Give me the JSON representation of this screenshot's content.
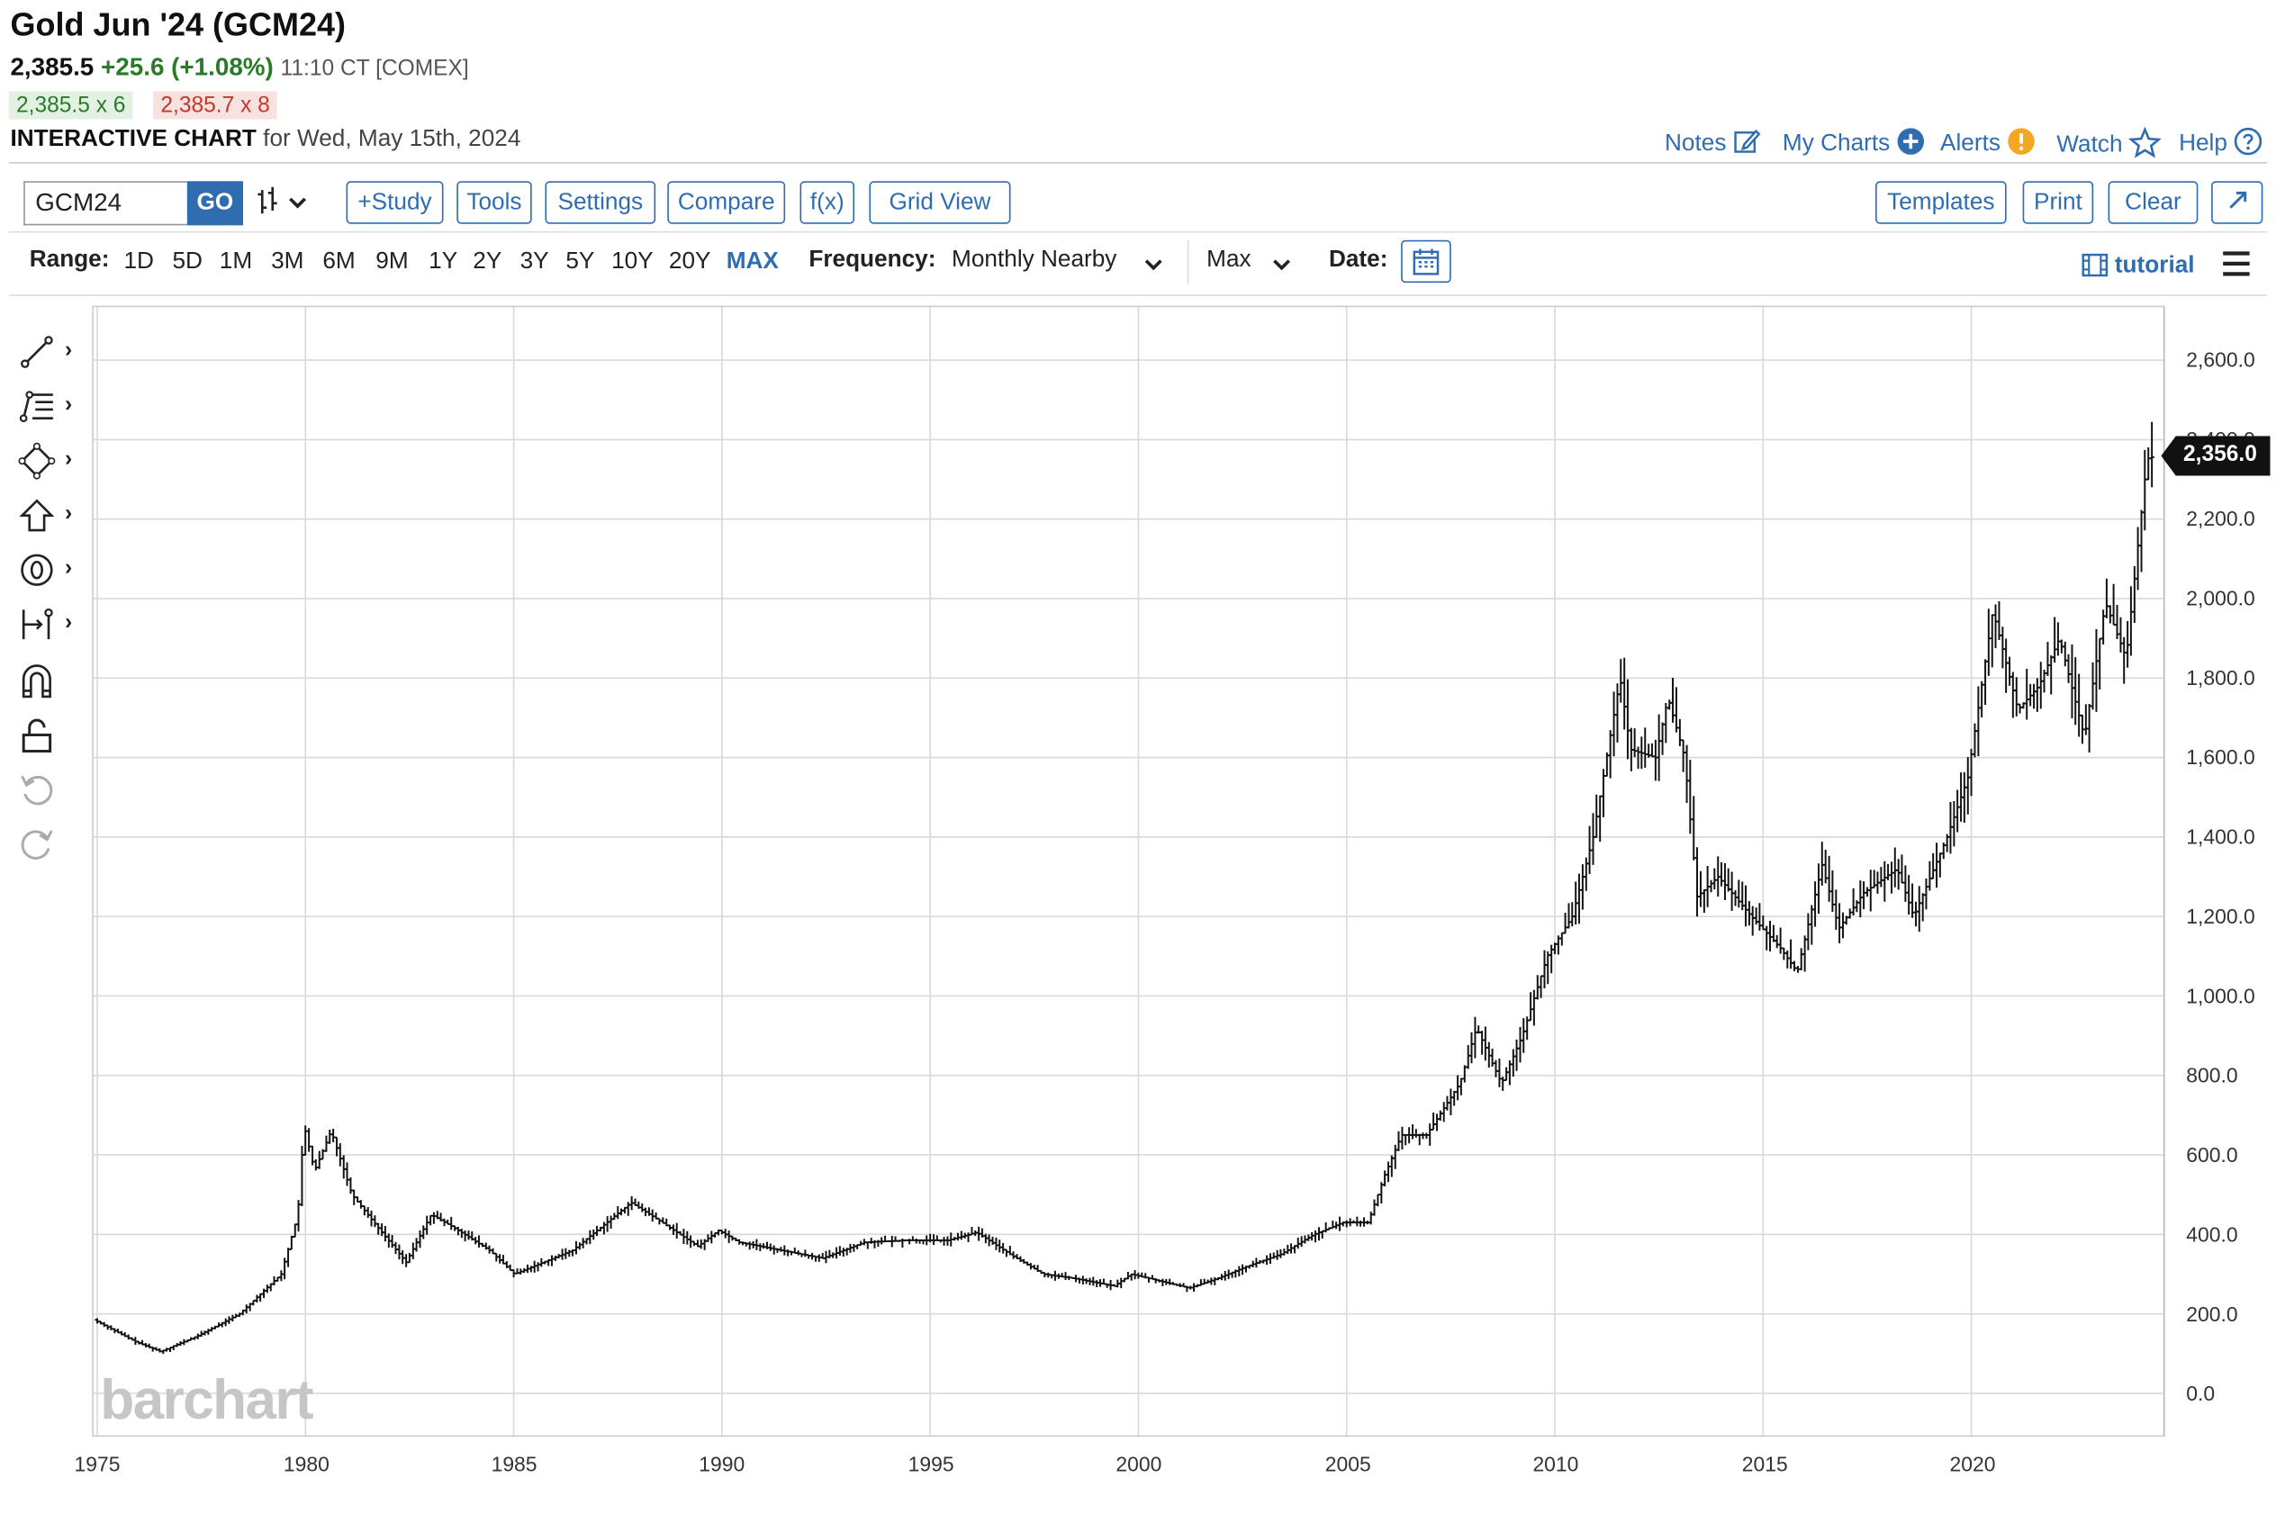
{
  "header": {
    "title": "Gold Jun '24 (GCM24)",
    "last": "2,385.5",
    "change": "+25.6 (+1.08%)",
    "time": "11:10 CT [COMEX]",
    "bid": "2,385.5 x 6",
    "ask": "2,385.7 x 8",
    "chart_label": "INTERACTIVE CHART",
    "chart_date": "for Wed, May 15th, 2024"
  },
  "top_links": {
    "notes": "Notes",
    "my_charts": "My Charts",
    "alerts": "Alerts",
    "watch": "Watch",
    "help": "Help"
  },
  "toolbar": {
    "symbol": "GCM24",
    "go": "GO",
    "study": "+Study",
    "tools": "Tools",
    "settings": "Settings",
    "compare": "Compare",
    "fx": "f(x)",
    "grid_view": "Grid View",
    "templates": "Templates",
    "print": "Print",
    "clear": "Clear"
  },
  "range_bar": {
    "range_label": "Range:",
    "ranges": [
      "1D",
      "5D",
      "1M",
      "3M",
      "6M",
      "9M",
      "1Y",
      "2Y",
      "3Y",
      "5Y",
      "10Y",
      "20Y",
      "MAX"
    ],
    "active_range": "MAX",
    "frequency_label": "Frequency:",
    "frequency_value": "Monthly Nearby",
    "max_value": "Max",
    "date_label": "Date:",
    "tutorial": "tutorial"
  },
  "watermark": "barchart",
  "colors": {
    "accent": "#2f6db0",
    "up": "#2a7a2a",
    "down": "#c0392b",
    "bars": "#000000",
    "grid": "#d9d9d9"
  },
  "chart_data": {
    "type": "bar",
    "series_type": "ohlc",
    "x_axis": "time (monthly)",
    "xlim": [
      1975,
      2024.6
    ],
    "xticks": [
      "1975",
      "1980",
      "1985",
      "1990",
      "1995",
      "2000",
      "2005",
      "2010",
      "2015",
      "2020"
    ],
    "ylim": [
      -50,
      2650
    ],
    "yticks": [
      "0.0",
      "200.0",
      "400.0",
      "600.0",
      "800.0",
      "1,000.0",
      "1,200.0",
      "1,400.0",
      "1,600.0",
      "1,800.0",
      "2,000.0",
      "2,200.0",
      "2,400.0",
      "2,600.0"
    ],
    "last_price_label": "2,356.0",
    "grid": true,
    "approx_close": [
      [
        1975.0,
        185
      ],
      [
        1976.0,
        130
      ],
      [
        1976.6,
        105
      ],
      [
        1977.5,
        145
      ],
      [
        1978.5,
        200
      ],
      [
        1979.5,
        300
      ],
      [
        1979.9,
        450
      ],
      [
        1980.05,
        675
      ],
      [
        1980.3,
        560
      ],
      [
        1980.7,
        660
      ],
      [
        1981.2,
        500
      ],
      [
        1981.8,
        420
      ],
      [
        1982.5,
        330
      ],
      [
        1983.1,
        450
      ],
      [
        1983.6,
        420
      ],
      [
        1984.5,
        360
      ],
      [
        1985.1,
        300
      ],
      [
        1985.8,
        330
      ],
      [
        1986.5,
        360
      ],
      [
        1987.2,
        420
      ],
      [
        1987.9,
        480
      ],
      [
        1988.5,
        440
      ],
      [
        1989.5,
        370
      ],
      [
        1990.0,
        410
      ],
      [
        1990.5,
        380
      ],
      [
        1991.5,
        360
      ],
      [
        1992.5,
        340
      ],
      [
        1993.5,
        380
      ],
      [
        1994.5,
        385
      ],
      [
        1995.5,
        385
      ],
      [
        1996.2,
        405
      ],
      [
        1997.0,
        350
      ],
      [
        1997.8,
        300
      ],
      [
        1998.5,
        290
      ],
      [
        1999.5,
        270
      ],
      [
        1999.9,
        300
      ],
      [
        2000.5,
        285
      ],
      [
        2001.3,
        265
      ],
      [
        2002.0,
        290
      ],
      [
        2002.7,
        320
      ],
      [
        2003.5,
        350
      ],
      [
        2004.3,
        400
      ],
      [
        2005.0,
        430
      ],
      [
        2005.6,
        430
      ],
      [
        2006.0,
        550
      ],
      [
        2006.4,
        650
      ],
      [
        2007.0,
        650
      ],
      [
        2007.8,
        780
      ],
      [
        2008.2,
        920
      ],
      [
        2008.8,
        780
      ],
      [
        2009.3,
        900
      ],
      [
        2009.9,
        1100
      ],
      [
        2010.5,
        1200
      ],
      [
        2011.0,
        1400
      ],
      [
        2011.65,
        1800
      ],
      [
        2011.9,
        1620
      ],
      [
        2012.5,
        1600
      ],
      [
        2012.8,
        1750
      ],
      [
        2013.2,
        1600
      ],
      [
        2013.5,
        1250
      ],
      [
        2014.0,
        1300
      ],
      [
        2014.8,
        1200
      ],
      [
        2015.5,
        1120
      ],
      [
        2015.9,
        1060
      ],
      [
        2016.5,
        1330
      ],
      [
        2016.9,
        1170
      ],
      [
        2017.5,
        1260
      ],
      [
        2018.3,
        1320
      ],
      [
        2018.7,
        1200
      ],
      [
        2019.5,
        1400
      ],
      [
        2020.0,
        1550
      ],
      [
        2020.6,
        1970
      ],
      [
        2021.2,
        1720
      ],
      [
        2021.7,
        1780
      ],
      [
        2022.2,
        1900
      ],
      [
        2022.8,
        1650
      ],
      [
        2023.3,
        1990
      ],
      [
        2023.8,
        1850
      ],
      [
        2024.0,
        2050
      ],
      [
        2024.3,
        2350
      ],
      [
        2024.37,
        2356
      ]
    ]
  }
}
